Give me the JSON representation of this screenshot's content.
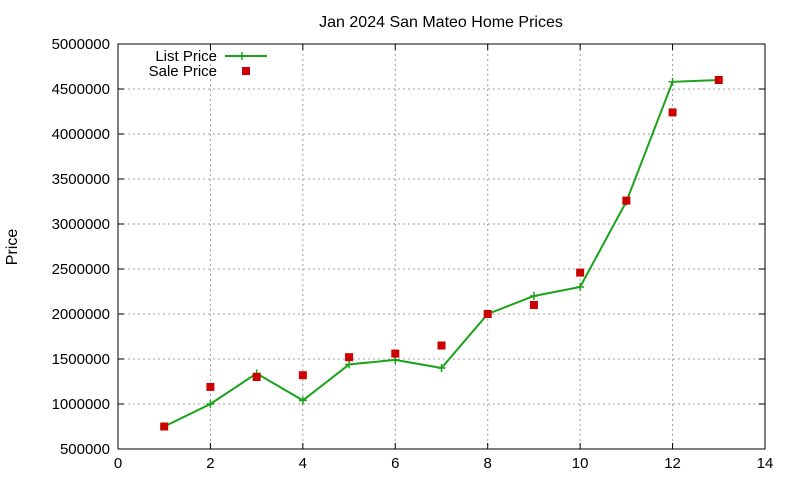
{
  "chart_data": {
    "type": "line",
    "title": "Jan 2024 San Mateo Home Prices",
    "xlabel": "",
    "ylabel": "Price",
    "xlim": [
      0,
      14
    ],
    "ylim": [
      500000,
      5000000
    ],
    "xticks": [
      0,
      2,
      4,
      6,
      8,
      10,
      12,
      14
    ],
    "yticks": [
      500000,
      1000000,
      1500000,
      2000000,
      2500000,
      3000000,
      3500000,
      4000000,
      4500000,
      5000000
    ],
    "grid": true,
    "legend_position": "top-left",
    "series": [
      {
        "name": "List Price",
        "style": "line-with-plus-markers",
        "color": "#1aa31a",
        "x": [
          1,
          2,
          3,
          4,
          5,
          6,
          7,
          8,
          9,
          10,
          11,
          12,
          13
        ],
        "y": [
          750000,
          1000000,
          1340000,
          1040000,
          1440000,
          1490000,
          1400000,
          2000000,
          2200000,
          2300000,
          3250000,
          4580000,
          4600000
        ]
      },
      {
        "name": "Sale Price",
        "style": "square-markers",
        "color": "#cc0000",
        "x": [
          1,
          2,
          3,
          4,
          5,
          6,
          7,
          8,
          9,
          10,
          11,
          12,
          13
        ],
        "y": [
          750000,
          1190000,
          1300000,
          1320000,
          1520000,
          1560000,
          1650000,
          2000000,
          2100000,
          2460000,
          3260000,
          4240000,
          4600000
        ]
      }
    ]
  }
}
